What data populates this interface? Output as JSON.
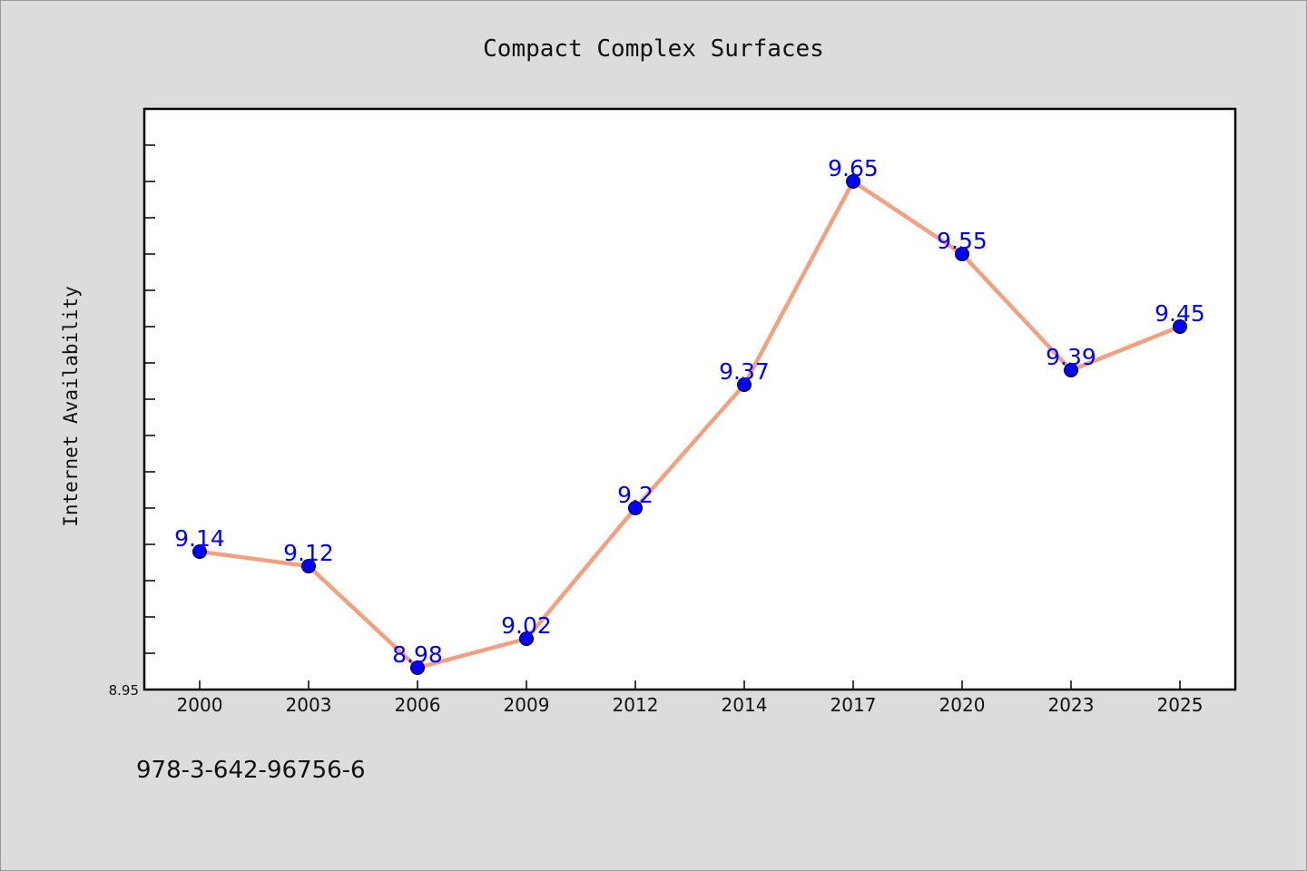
{
  "chart_data": {
    "type": "line",
    "title": "Compact Complex Surfaces",
    "xlabel": "",
    "ylabel": "Internet Availability",
    "categories": [
      "2000",
      "2003",
      "2006",
      "2009",
      "2012",
      "2014",
      "2017",
      "2020",
      "2023",
      "2025"
    ],
    "series": [
      {
        "values": [
          9.14,
          9.12,
          8.98,
          9.02,
          9.2,
          9.37,
          9.65,
          9.55,
          9.39,
          9.45
        ],
        "labels": [
          "9.14",
          "9.12",
          "8.98",
          "9.02",
          "9.2",
          "9.37",
          "9.65",
          "9.55",
          "9.39",
          "9.45"
        ],
        "line_color": "#f4a07e",
        "marker_color": "#0000ff"
      }
    ],
    "ylim": [
      8.95,
      9.75
    ],
    "y_tick_labels": [
      "8.95"
    ],
    "grid": false,
    "legend": "none"
  },
  "footnote": "978-3-642-96756-6"
}
